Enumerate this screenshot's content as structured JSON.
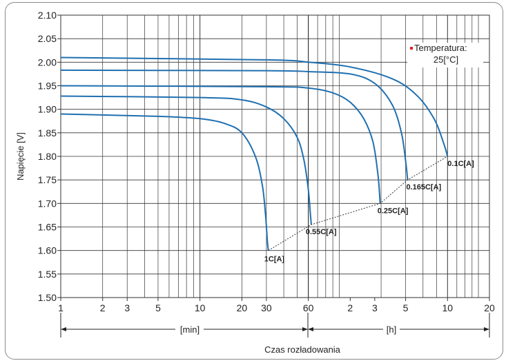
{
  "chart_data": {
    "type": "line",
    "title": "",
    "ylabel": "Napięcie [V]",
    "xlabel": "Czas rozładowania",
    "ylim": [
      1.5,
      2.1
    ],
    "y_ticks": [
      "1.50",
      "1.55",
      "1.60",
      "1.65",
      "1.70",
      "1.75",
      "1.80",
      "1.85",
      "1.90",
      "1.95",
      "2.00",
      "2.05",
      "2.10"
    ],
    "x_ticks": [
      "1",
      "2",
      "3",
      "5",
      "10",
      "20",
      "30",
      "60",
      "2",
      "3",
      "5",
      "10",
      "20"
    ],
    "x_unit_min": "[min]",
    "x_unit_h": "[h]",
    "grid": true,
    "legend_text": [
      "Temperatura:",
      "25[°C]"
    ],
    "series": [
      {
        "name": "1C[A]",
        "points": [
          [
            1,
            1.89
          ],
          [
            5,
            1.885
          ],
          [
            10,
            1.88
          ],
          [
            15,
            1.87
          ],
          [
            20,
            1.85
          ],
          [
            25,
            1.8
          ],
          [
            28,
            1.74
          ],
          [
            29.5,
            1.68
          ],
          [
            30.5,
            1.62
          ],
          [
            31,
            1.6
          ]
        ],
        "label_at": [
          31,
          1.6
        ]
      },
      {
        "name": "0.55C[A]",
        "points": [
          [
            1,
            1.928
          ],
          [
            10,
            1.925
          ],
          [
            20,
            1.92
          ],
          [
            30,
            1.905
          ],
          [
            40,
            1.88
          ],
          [
            50,
            1.84
          ],
          [
            56,
            1.79
          ],
          [
            60,
            1.73
          ],
          [
            62,
            1.68
          ],
          [
            63,
            1.655
          ]
        ],
        "label_at": [
          63,
          1.655
        ]
      },
      {
        "name": "0.25C[A]",
        "points": [
          [
            1,
            1.95
          ],
          [
            30,
            1.948
          ],
          [
            60,
            1.945
          ],
          [
            90,
            1.935
          ],
          [
            120,
            1.915
          ],
          [
            150,
            1.88
          ],
          [
            175,
            1.83
          ],
          [
            190,
            1.76
          ],
          [
            197,
            1.7
          ]
        ],
        "label_at": [
          197,
          1.7
        ]
      },
      {
        "name": "0.165C[A]",
        "points": [
          [
            1,
            1.983
          ],
          [
            30,
            1.982
          ],
          [
            60,
            1.98
          ],
          [
            120,
            1.975
          ],
          [
            180,
            1.955
          ],
          [
            240,
            1.91
          ],
          [
            280,
            1.85
          ],
          [
            300,
            1.79
          ],
          [
            310,
            1.75
          ]
        ],
        "label_at": [
          310,
          1.75
        ]
      },
      {
        "name": "0.1C[A]",
        "points": [
          [
            1,
            2.01
          ],
          [
            30,
            2.005
          ],
          [
            60,
            2.0
          ],
          [
            120,
            1.99
          ],
          [
            240,
            1.965
          ],
          [
            360,
            1.93
          ],
          [
            480,
            1.88
          ],
          [
            560,
            1.83
          ],
          [
            600,
            1.8
          ]
        ],
        "label_at": [
          600,
          1.8
        ]
      }
    ],
    "endpoint_line": [
      [
        31,
        1.6
      ],
      [
        63,
        1.655
      ],
      [
        197,
        1.7
      ],
      [
        310,
        1.75
      ],
      [
        600,
        1.8
      ]
    ]
  }
}
